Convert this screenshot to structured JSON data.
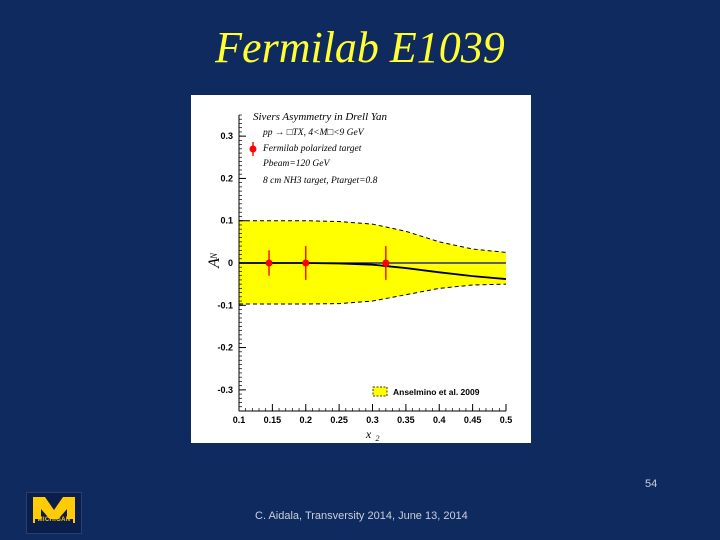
{
  "slide": {
    "title": "Fermilab E1039",
    "footer": "C. Aidala, Transversity 2014, June 13, 2014",
    "page_number": "54",
    "logo_text": "MICHIGAN"
  },
  "chart_data": {
    "type": "scatter",
    "title": "Sivers Asymmetry in Drell Yan",
    "xlabel": "x",
    "xlabel_sub": "2",
    "ylabel": "A",
    "ylabel_sub": "N",
    "xlim": [
      0.1,
      0.5
    ],
    "ylim": [
      -0.35,
      0.35
    ],
    "xticks": [
      0.1,
      0.15,
      0.2,
      0.25,
      0.3,
      0.35,
      0.4,
      0.45,
      0.5
    ],
    "yticks": [
      0.3,
      0.2,
      0.1,
      0,
      -0.1,
      -0.2,
      -0.3
    ],
    "xtick_labels": [
      "0.1",
      "0.15",
      "0.2",
      "0.25",
      "0.3",
      "0.35",
      "0.4",
      "0.45",
      "0.5"
    ],
    "ytick_labels": [
      "0.3",
      "0.2",
      "0.1",
      "0",
      "-0.1",
      "-0.2",
      "-0.3"
    ],
    "annotations": [
      "pp → □TX, 4<M□<9 GeV",
      "Fermilab polarized target",
      "Pbeam=120 GeV",
      "8 cm NH3 target, Ptarget=0.8"
    ],
    "legend": {
      "label": "Anselmino et al. 2009",
      "placement": "bottom-right"
    },
    "points": {
      "x": [
        0.145,
        0.2,
        0.32
      ],
      "y": [
        0,
        0,
        0
      ],
      "yerr": [
        0.03,
        0.04,
        0.04
      ]
    },
    "band": {
      "name": "Anselmino et al. 2009",
      "x": [
        0.1,
        0.2,
        0.25,
        0.3,
        0.35,
        0.4,
        0.45,
        0.5
      ],
      "upper": [
        0.1,
        0.1,
        0.098,
        0.092,
        0.075,
        0.05,
        0.033,
        0.025
      ],
      "lower": [
        -0.097,
        -0.097,
        -0.096,
        -0.09,
        -0.075,
        -0.06,
        -0.052,
        -0.05
      ]
    },
    "curve": {
      "x": [
        0.1,
        0.2,
        0.25,
        0.3,
        0.35,
        0.4,
        0.45,
        0.5
      ],
      "y": [
        0,
        0,
        -0.001,
        -0.004,
        -0.012,
        -0.022,
        -0.031,
        -0.038
      ]
    },
    "legend_marker": {
      "label": "Fermilab polarized target"
    },
    "colors": {
      "band": "#ffff00",
      "band_edge": "#000000",
      "points": "#ff0000",
      "zero_line": "#0000aa",
      "curve": "#000000"
    }
  }
}
